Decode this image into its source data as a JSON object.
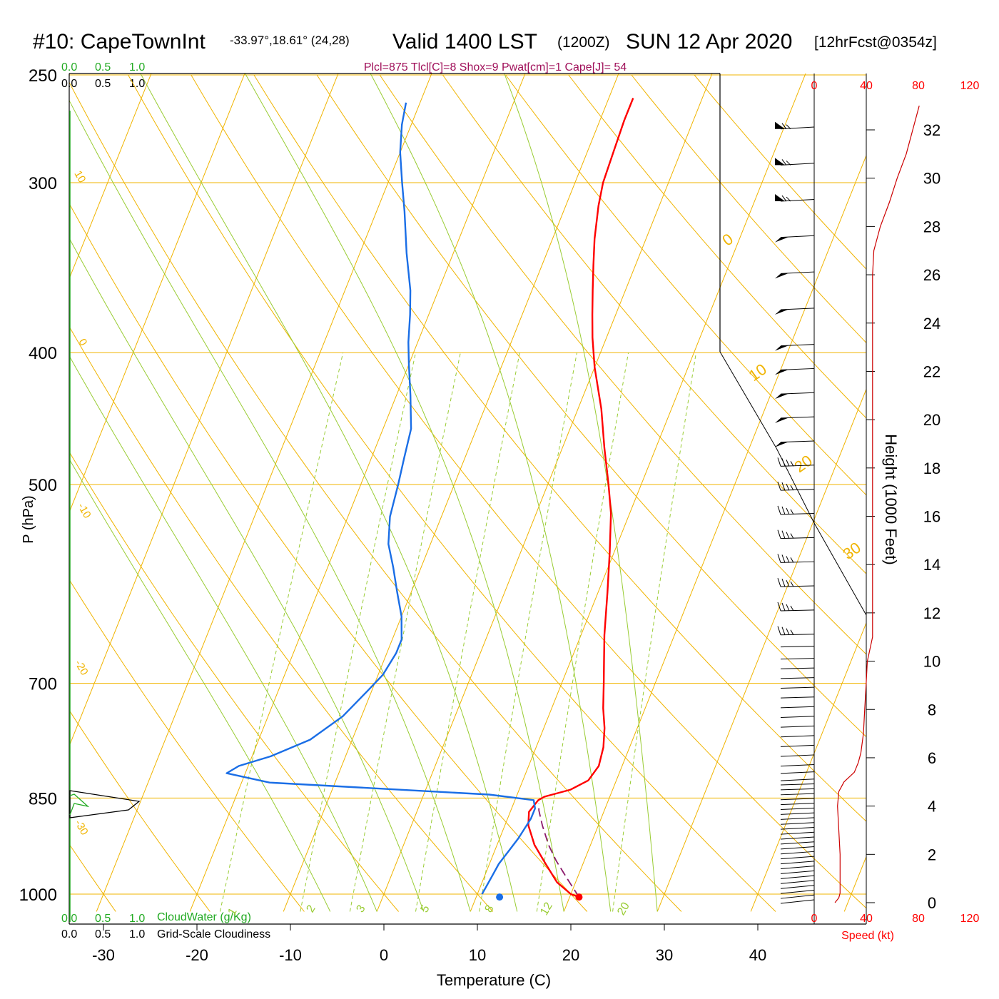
{
  "header": {
    "station": "#10: CapeTownInt",
    "coords": "-33.97°,18.61° (24,28)",
    "valid": "Valid 1400 LST",
    "utc": "(1200Z)",
    "date": "SUN 12 Apr 2020",
    "forecast": "[12hrFcst@0354z]",
    "indices": "Plcl=875 Tlcl[C]=8 Shox=9 Pwat[cm]=1 Cape[J]= 54"
  },
  "cloud_scale": {
    "green_ticks": [
      "0.0",
      "0.5",
      "1.0"
    ],
    "black_ticks": [
      "0.0",
      "0.5",
      "1.0"
    ],
    "cloudwater_label": "CloudWater (g/Kg)",
    "cloudiness_label": "Grid-Scale Cloudiness"
  },
  "speed_axis": {
    "ticks": [
      "0",
      "40",
      "80",
      "120"
    ],
    "label": "Speed (kt)"
  },
  "colors": {
    "temperature": "#ff0000",
    "dewpoint": "#1a6ee6",
    "parcel": "#8b1a6b",
    "isotherm": "#f0b400",
    "dry_adiabat": "#f0b400",
    "moist_adiabat": "#99cc33",
    "mixing_ratio": "#99cc33",
    "cloud_water": "#22aa22",
    "speed": "#cc0000",
    "indices": "#a0105a"
  },
  "chart_data": {
    "type": "line",
    "title": "#10: CapeTownInt Valid 1400 LST (1200Z) SUN 12 Apr 2020",
    "xlabel": "Temperature (C)",
    "ylabel": "P (hPa)",
    "x_ticks": [
      "-30",
      "-20",
      "-10",
      "0",
      "10",
      "20",
      "30",
      "40"
    ],
    "y_ticks": [
      "250",
      "300",
      "400",
      "500",
      "700",
      "850",
      "1000"
    ],
    "y_scale": "log (inverted)",
    "height_axis": {
      "label": "Height (1000 Feet)",
      "ticks": [
        "0",
        "2",
        "4",
        "6",
        "8",
        "10",
        "12",
        "14",
        "16",
        "18",
        "20",
        "22",
        "24",
        "26",
        "28",
        "30",
        "32"
      ]
    },
    "dry_adiabat_labels": [
      "10",
      "0",
      "-10",
      "-20",
      "-30",
      "0",
      "10",
      "20",
      "30"
    ],
    "mixing_ratio_labels": [
      "1",
      "2",
      "3",
      "5",
      "8",
      "12",
      "20"
    ],
    "series": [
      {
        "name": "Temperature",
        "points": [
          [
            21.0,
            1005
          ],
          [
            20.0,
            1000
          ],
          [
            18.0,
            980
          ],
          [
            16.0,
            950
          ],
          [
            14.0,
            920
          ],
          [
            12.5,
            890
          ],
          [
            12.0,
            870
          ],
          [
            12.5,
            853
          ],
          [
            13.0,
            848
          ],
          [
            15.5,
            838
          ],
          [
            17.0,
            825
          ],
          [
            17.5,
            805
          ],
          [
            17.2,
            780
          ],
          [
            16.5,
            755
          ],
          [
            15.5,
            730
          ],
          [
            14.5,
            700
          ],
          [
            13.5,
            672
          ],
          [
            12.5,
            645
          ],
          [
            11.0,
            600
          ],
          [
            9.5,
            560
          ],
          [
            8.0,
            525
          ],
          [
            6.5,
            500
          ],
          [
            4.5,
            470
          ],
          [
            2.5,
            440
          ],
          [
            0.0,
            410
          ],
          [
            -1.5,
            390
          ],
          [
            -2.5,
            375
          ],
          [
            -3.5,
            360
          ],
          [
            -4.5,
            345
          ],
          [
            -5.5,
            330
          ],
          [
            -6.5,
            312
          ],
          [
            -7.0,
            300
          ],
          [
            -7.2,
            285
          ],
          [
            -7.4,
            270
          ],
          [
            -7.4,
            260
          ]
        ]
      },
      {
        "name": "Dewpoint",
        "points": [
          [
            10.5,
            1000
          ],
          [
            10.6,
            990
          ],
          [
            10.8,
            970
          ],
          [
            11.0,
            950
          ],
          [
            11.5,
            930
          ],
          [
            12.0,
            910
          ],
          [
            12.5,
            880
          ],
          [
            12.5,
            865
          ],
          [
            12.0,
            853
          ],
          [
            7.0,
            845
          ],
          [
            -17.0,
            828
          ],
          [
            -22.0,
            815
          ],
          [
            -21.0,
            805
          ],
          [
            -18.0,
            792
          ],
          [
            -14.5,
            770
          ],
          [
            -12.0,
            740
          ],
          [
            -10.5,
            710
          ],
          [
            -9.5,
            690
          ],
          [
            -9.0,
            665
          ],
          [
            -9.0,
            650
          ],
          [
            -10.0,
            625
          ],
          [
            -11.5,
            600
          ],
          [
            -13.0,
            575
          ],
          [
            -14.5,
            553
          ],
          [
            -15.5,
            528
          ],
          [
            -16.0,
            500
          ],
          [
            -16.5,
            478
          ],
          [
            -17.0,
            455
          ],
          [
            -18.5,
            430
          ],
          [
            -20.0,
            408
          ],
          [
            -21.0,
            393
          ],
          [
            -22.0,
            375
          ],
          [
            -23.0,
            360
          ],
          [
            -25.0,
            338
          ],
          [
            -27.0,
            315
          ],
          [
            -28.5,
            300
          ],
          [
            -30.0,
            285
          ],
          [
            -31.0,
            272
          ],
          [
            -31.5,
            262
          ]
        ]
      },
      {
        "name": "Parcel",
        "points": [
          [
            21.0,
            1005
          ],
          [
            19.0,
            975
          ],
          [
            17.0,
            945
          ],
          [
            15.5,
            920
          ],
          [
            14.0,
            890
          ],
          [
            13.0,
            868
          ],
          [
            12.7,
            858
          ]
        ]
      }
    ],
    "markers": [
      {
        "name": "surface-temperature",
        "value": [
          21.0,
          1005
        ]
      },
      {
        "name": "surface-dewpoint",
        "value": [
          12.5,
          1005
        ]
      }
    ],
    "wind_speed_kt": {
      "heights_kft": [
        0.0,
        0.2,
        0.4,
        1.0,
        2.0,
        3.0,
        4.0,
        4.6,
        5.0,
        5.4,
        5.8,
        6.2,
        7.0,
        8.0,
        9.0,
        10.0,
        11.0,
        12.0,
        13.0,
        14.0,
        16.0,
        18.0,
        20.0,
        22.0,
        24.0,
        26.0,
        27.0,
        28.0,
        29.0,
        30.0,
        31.0,
        32.0,
        33.0
      ],
      "speeds": [
        16,
        19,
        20,
        20,
        20,
        19,
        18,
        19,
        23,
        31,
        34,
        36,
        38,
        39,
        40,
        41,
        45,
        45,
        45,
        45,
        45,
        45,
        45,
        45,
        45,
        45,
        46,
        51,
        58,
        64,
        71,
        76,
        81
      ]
    },
    "wind_barbs_kft": [
      0.0,
      0.2,
      0.4,
      0.6,
      0.8,
      1.0,
      1.2,
      1.4,
      1.6,
      1.8,
      2.0,
      2.2,
      2.4,
      2.6,
      2.8,
      3.0,
      3.2,
      3.4,
      3.6,
      3.8,
      4.0,
      4.2,
      4.4,
      4.6,
      4.8,
      5.0,
      5.3,
      5.6,
      6.0,
      6.4,
      6.8,
      7.2,
      7.6,
      8.0,
      8.4,
      8.8,
      9.2,
      9.6,
      10.0,
      10.5,
      11.0,
      12.0,
      13.0,
      14.0,
      15.0,
      16.0,
      17.0,
      18.0,
      19.0,
      20.0,
      21.0,
      22.0,
      23.0,
      24.5,
      26.0,
      27.5,
      29.0,
      30.5,
      32.0
    ]
  }
}
